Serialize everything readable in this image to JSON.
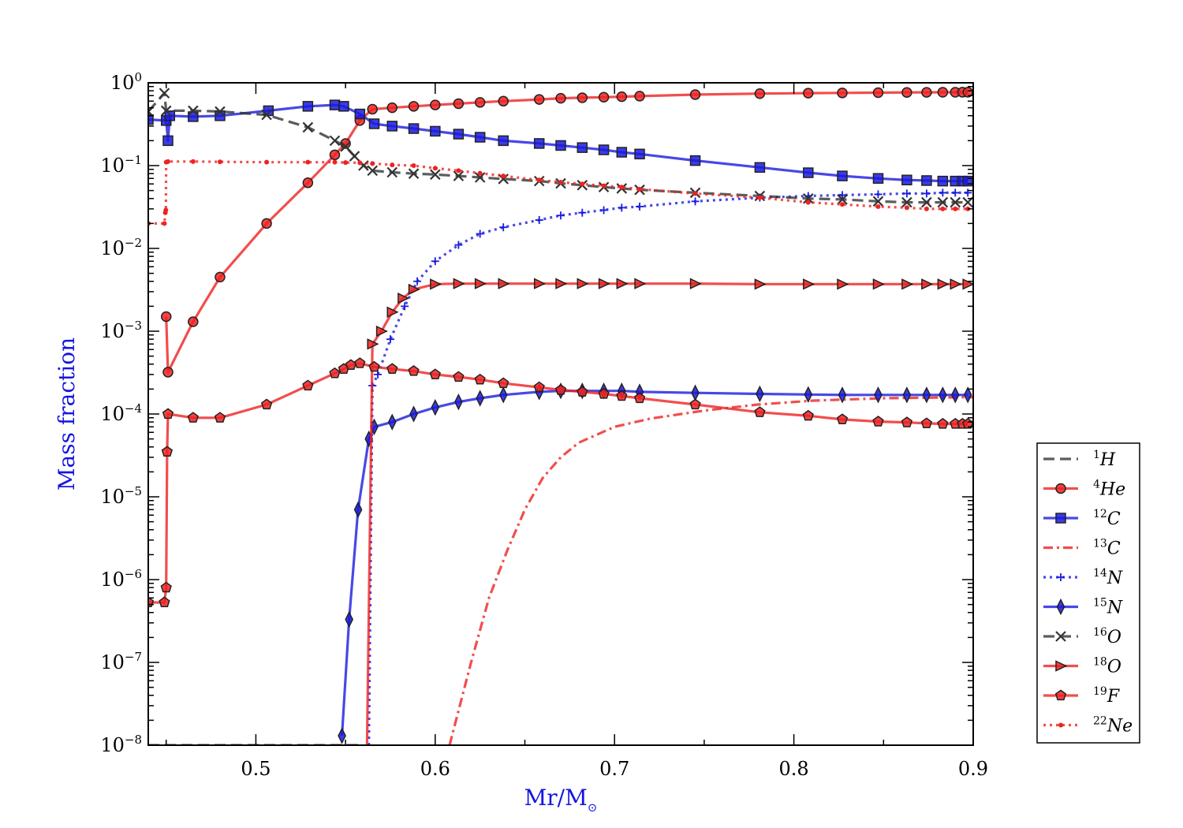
{
  "chart_data": {
    "type": "line",
    "title": "",
    "xlabel": "Mr/M",
    "xlabel_subscript": "⊙",
    "ylabel": "Mass fraction",
    "xlim": [
      0.44,
      0.9
    ],
    "ylim": [
      1e-08,
      1
    ],
    "yscale": "log",
    "xticks": [
      "0.5",
      "0.6",
      "0.7",
      "0.8",
      "0.9"
    ],
    "xtick_values": [
      0.5,
      0.6,
      0.7,
      0.8,
      0.9
    ],
    "yticks": [
      {
        "base": "10",
        "exp": "0",
        "value": 1
      },
      {
        "base": "10",
        "exp": "−1",
        "value": 0.1
      },
      {
        "base": "10",
        "exp": "−2",
        "value": 0.01
      },
      {
        "base": "10",
        "exp": "−3",
        "value": 0.001
      },
      {
        "base": "10",
        "exp": "−4",
        "value": 0.0001
      },
      {
        "base": "10",
        "exp": "−5",
        "value": 1e-05
      },
      {
        "base": "10",
        "exp": "−6",
        "value": 1e-06
      },
      {
        "base": "10",
        "exp": "−7",
        "value": 1e-07
      },
      {
        "base": "10",
        "exp": "−8",
        "value": 1e-08
      }
    ],
    "legend_position": "outside-right-bottom",
    "grid": false,
    "series": [
      {
        "mass": "1",
        "element": "H",
        "color": "#333333",
        "dash": "dashed",
        "marker": "none",
        "x": [
          0.44,
          0.55,
          0.552,
          0.555,
          0.558,
          0.56
        ],
        "y": [
          1e-08,
          1e-08,
          1e-08,
          1e-08,
          1e-08,
          1e-08
        ]
      },
      {
        "mass": "4",
        "element": "He",
        "color": "#ee2222",
        "dash": "solid",
        "marker": "circle",
        "x": [
          0.45,
          0.451,
          0.465,
          0.48,
          0.506,
          0.529,
          0.544,
          0.55,
          0.558,
          0.565,
          0.576,
          0.588,
          0.6,
          0.613,
          0.625,
          0.638,
          0.658,
          0.67,
          0.682,
          0.694,
          0.704,
          0.714,
          0.745,
          0.781,
          0.808,
          0.827,
          0.847,
          0.863,
          0.874,
          0.883,
          0.89,
          0.894,
          0.897
        ],
        "y": [
          0.0015,
          0.00032,
          0.0013,
          0.0045,
          0.02,
          0.062,
          0.135,
          0.185,
          0.35,
          0.48,
          0.5,
          0.52,
          0.54,
          0.56,
          0.58,
          0.6,
          0.63,
          0.65,
          0.66,
          0.67,
          0.68,
          0.69,
          0.72,
          0.74,
          0.75,
          0.755,
          0.76,
          0.765,
          0.767,
          0.768,
          0.769,
          0.77,
          0.77
        ]
      },
      {
        "mass": "12",
        "element": "C",
        "color": "#1a1ae0",
        "dash": "solid",
        "marker": "square",
        "x": [
          0.44,
          0.45,
          0.451,
          0.452,
          0.465,
          0.48,
          0.507,
          0.529,
          0.544,
          0.549,
          0.558,
          0.566,
          0.576,
          0.588,
          0.6,
          0.613,
          0.625,
          0.638,
          0.658,
          0.67,
          0.682,
          0.694,
          0.704,
          0.714,
          0.745,
          0.781,
          0.808,
          0.827,
          0.847,
          0.863,
          0.874,
          0.883,
          0.89,
          0.894,
          0.897
        ],
        "y": [
          0.36,
          0.35,
          0.2,
          0.4,
          0.39,
          0.4,
          0.46,
          0.52,
          0.54,
          0.52,
          0.42,
          0.32,
          0.3,
          0.28,
          0.26,
          0.24,
          0.22,
          0.2,
          0.185,
          0.175,
          0.165,
          0.155,
          0.145,
          0.138,
          0.115,
          0.095,
          0.082,
          0.075,
          0.07,
          0.067,
          0.066,
          0.065,
          0.065,
          0.065,
          0.065
        ]
      },
      {
        "mass": "13",
        "element": "C",
        "color": "#ee2222",
        "dash": "dashdot",
        "marker": "none",
        "x": [
          0.608,
          0.62,
          0.63,
          0.64,
          0.65,
          0.66,
          0.67,
          0.68,
          0.7,
          0.72,
          0.75,
          0.78,
          0.81,
          0.85,
          0.9
        ],
        "y": [
          1e-08,
          1e-07,
          6e-07,
          2.2e-06,
          7e-06,
          1.7e-05,
          3e-05,
          4.5e-05,
          7e-05,
          8.8e-05,
          0.00011,
          0.00013,
          0.000145,
          0.000155,
          0.00016
        ]
      },
      {
        "mass": "14",
        "element": "N",
        "color": "#1a1ae0",
        "dash": "dotted",
        "marker": "plus",
        "x": [
          0.563,
          0.565,
          0.568,
          0.575,
          0.583,
          0.59,
          0.6,
          0.613,
          0.625,
          0.638,
          0.658,
          0.67,
          0.682,
          0.694,
          0.704,
          0.714,
          0.745,
          0.781,
          0.808,
          0.827,
          0.847,
          0.863,
          0.874,
          0.883,
          0.89,
          0.897
        ],
        "y": [
          1e-08,
          0.00022,
          0.0003,
          0.0008,
          0.002,
          0.004,
          0.007,
          0.011,
          0.015,
          0.018,
          0.022,
          0.025,
          0.027,
          0.029,
          0.031,
          0.032,
          0.037,
          0.041,
          0.043,
          0.044,
          0.045,
          0.046,
          0.046,
          0.047,
          0.047,
          0.047
        ]
      },
      {
        "mass": "15",
        "element": "N",
        "color": "#1a1ae0",
        "dash": "solid",
        "marker": "diamond",
        "x": [
          0.548,
          0.552,
          0.557,
          0.563,
          0.566,
          0.576,
          0.588,
          0.6,
          0.613,
          0.625,
          0.638,
          0.658,
          0.67,
          0.682,
          0.694,
          0.704,
          0.714,
          0.745,
          0.781,
          0.808,
          0.827,
          0.847,
          0.863,
          0.874,
          0.883,
          0.89,
          0.897
        ],
        "y": [
          1.3e-08,
          3.3e-07,
          7e-06,
          5e-05,
          7e-05,
          8e-05,
          0.0001,
          0.00012,
          0.00014,
          0.000155,
          0.00017,
          0.000185,
          0.00019,
          0.00019,
          0.00019,
          0.00019,
          0.000185,
          0.00018,
          0.000175,
          0.000172,
          0.00017,
          0.00017,
          0.00017,
          0.00017,
          0.00017,
          0.00017,
          0.00017
        ]
      },
      {
        "mass": "16",
        "element": "O",
        "color": "#333333",
        "dash": "dashed",
        "marker": "x",
        "x": [
          0.44,
          0.449,
          0.45,
          0.465,
          0.48,
          0.506,
          0.529,
          0.544,
          0.55,
          0.555,
          0.56,
          0.565,
          0.576,
          0.588,
          0.6,
          0.613,
          0.625,
          0.638,
          0.658,
          0.67,
          0.682,
          0.694,
          0.704,
          0.714,
          0.745,
          0.781,
          0.808,
          0.827,
          0.847,
          0.863,
          0.874,
          0.883,
          0.89,
          0.897
        ],
        "y": [
          0.45,
          0.75,
          0.46,
          0.46,
          0.45,
          0.41,
          0.29,
          0.2,
          0.17,
          0.13,
          0.1,
          0.087,
          0.083,
          0.08,
          0.078,
          0.075,
          0.072,
          0.069,
          0.065,
          0.061,
          0.058,
          0.055,
          0.053,
          0.051,
          0.047,
          0.043,
          0.04,
          0.039,
          0.037,
          0.036,
          0.036,
          0.036,
          0.036,
          0.036
        ]
      },
      {
        "mass": "18",
        "element": "O",
        "color": "#ee2222",
        "dash": "solid",
        "marker": "triangle-right",
        "x": [
          0.562,
          0.565,
          0.57,
          0.576,
          0.582,
          0.588,
          0.6,
          0.613,
          0.625,
          0.638,
          0.658,
          0.67,
          0.682,
          0.694,
          0.704,
          0.714,
          0.745,
          0.781,
          0.808,
          0.827,
          0.847,
          0.863,
          0.874,
          0.883,
          0.89,
          0.897
        ],
        "y": [
          1e-08,
          0.0007,
          0.001,
          0.0017,
          0.0025,
          0.0032,
          0.0037,
          0.00375,
          0.00375,
          0.00375,
          0.00375,
          0.00375,
          0.00375,
          0.00375,
          0.00375,
          0.00375,
          0.00375,
          0.0037,
          0.0037,
          0.0037,
          0.0037,
          0.0037,
          0.0037,
          0.0037,
          0.0037,
          0.0037
        ]
      },
      {
        "mass": "19",
        "element": "F",
        "color": "#ee2222",
        "dash": "solid",
        "marker": "pentagon",
        "x": [
          0.44,
          0.449,
          0.45,
          0.4505,
          0.451,
          0.465,
          0.48,
          0.506,
          0.529,
          0.544,
          0.549,
          0.553,
          0.558,
          0.566,
          0.576,
          0.588,
          0.6,
          0.613,
          0.625,
          0.638,
          0.658,
          0.67,
          0.682,
          0.694,
          0.704,
          0.714,
          0.745,
          0.781,
          0.808,
          0.827,
          0.847,
          0.863,
          0.874,
          0.883,
          0.89,
          0.894,
          0.897
        ],
        "y": [
          5.3e-07,
          5.3e-07,
          8e-07,
          3.5e-05,
          0.0001,
          9e-05,
          9e-05,
          0.00013,
          0.00022,
          0.00031,
          0.00035,
          0.00039,
          0.00041,
          0.00037,
          0.00035,
          0.00033,
          0.0003,
          0.00028,
          0.00026,
          0.000235,
          0.00021,
          0.000195,
          0.000185,
          0.000175,
          0.000165,
          0.000155,
          0.00013,
          0.000105,
          9.5e-05,
          8.6e-05,
          8.1e-05,
          7.9e-05,
          7.7e-05,
          7.6e-05,
          7.6e-05,
          7.6e-05,
          7.6e-05
        ]
      },
      {
        "mass": "22",
        "element": "Ne",
        "color": "#ee2222",
        "dash": "dotted",
        "marker": "dot",
        "x": [
          0.44,
          0.449,
          0.4495,
          0.4498,
          0.45,
          0.451,
          0.465,
          0.48,
          0.506,
          0.529,
          0.544,
          0.55,
          0.558,
          0.565,
          0.576,
          0.588,
          0.6,
          0.613,
          0.625,
          0.638,
          0.658,
          0.67,
          0.682,
          0.694,
          0.704,
          0.714,
          0.745,
          0.781,
          0.808,
          0.827,
          0.847,
          0.863,
          0.874,
          0.883,
          0.89,
          0.897
        ],
        "y": [
          0.02,
          0.02,
          0.027,
          0.029,
          0.11,
          0.112,
          0.112,
          0.111,
          0.11,
          0.11,
          0.11,
          0.109,
          0.108,
          0.106,
          0.102,
          0.1,
          0.093,
          0.087,
          0.081,
          0.075,
          0.067,
          0.063,
          0.06,
          0.057,
          0.055,
          0.052,
          0.046,
          0.041,
          0.036,
          0.034,
          0.032,
          0.031,
          0.03,
          0.03,
          0.03,
          0.03
        ]
      }
    ]
  }
}
